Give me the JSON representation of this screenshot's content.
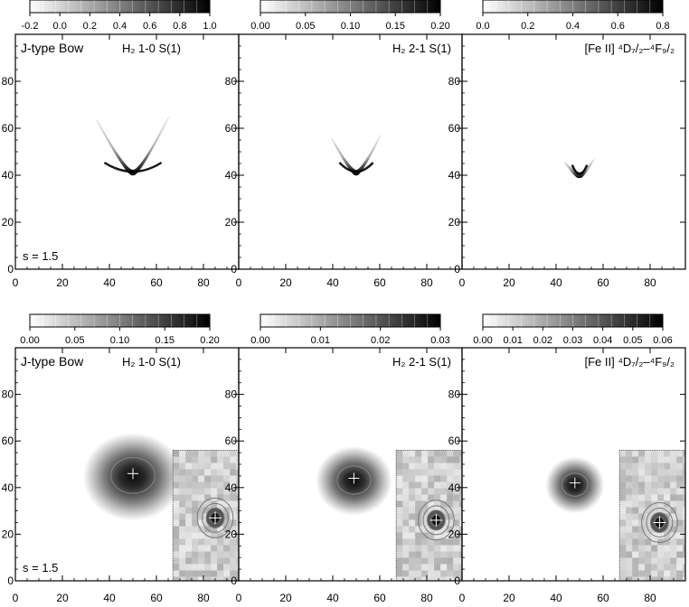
{
  "chart_data": [
    {
      "type": "heatmap",
      "row": 0,
      "col": 0,
      "model_label": "J-type Bow",
      "line_label": "H₂ 1-0 S(1)",
      "s_label": "s = 1.5",
      "colorbar": {
        "ticks": [
          "-0.2",
          "0.0",
          "0.2",
          "0.4",
          "0.6",
          "0.8",
          "1.0"
        ],
        "min": -0.2,
        "max": 1.0
      },
      "xlim": [
        0,
        95
      ],
      "ylim": [
        0,
        100
      ],
      "xticks": [
        "0",
        "20",
        "40",
        "60",
        "80"
      ],
      "yticks": [
        "0",
        "20",
        "40",
        "60",
        "80"
      ],
      "emission": {
        "shape": "bow",
        "apex": [
          50,
          40
        ],
        "half_width": 16,
        "height": 24,
        "peak": 1.0
      }
    },
    {
      "type": "heatmap",
      "row": 0,
      "col": 1,
      "model_label": "",
      "line_label": "H₂ 2-1 S(1)",
      "s_label": "",
      "colorbar": {
        "ticks": [
          "0.00",
          "0.05",
          "0.10",
          "0.15",
          "0.20"
        ],
        "min": 0.0,
        "max": 0.2
      },
      "xlim": [
        0,
        95
      ],
      "ylim": [
        0,
        100
      ],
      "xticks": [
        "0",
        "20",
        "40",
        "60",
        "80"
      ],
      "yticks": [
        "0",
        "20",
        "40",
        "60",
        "80"
      ],
      "emission": {
        "shape": "bow",
        "apex": [
          50,
          40
        ],
        "half_width": 11,
        "height": 16,
        "peak": 0.2
      }
    },
    {
      "type": "heatmap",
      "row": 0,
      "col": 2,
      "model_label": "",
      "line_label": "[Fe II] ⁴D₇/₂–⁴F₉/₂",
      "s_label": "",
      "colorbar": {
        "ticks": [
          "0.0",
          "0.2",
          "0.4",
          "0.6",
          "0.8"
        ],
        "min": 0.0,
        "max": 0.8
      },
      "xlim": [
        0,
        95
      ],
      "ylim": [
        0,
        100
      ],
      "xticks": [
        "0",
        "20",
        "40",
        "60",
        "80"
      ],
      "yticks": [
        "0",
        "20",
        "40",
        "60",
        "80"
      ],
      "emission": {
        "shape": "bow",
        "apex": [
          50,
          39
        ],
        "half_width": 7,
        "height": 7,
        "peak": 0.8
      }
    },
    {
      "type": "heatmap",
      "row": 1,
      "col": 0,
      "model_label": "J-type Bow",
      "line_label": "H₂ 1-0 S(1)",
      "s_label": "s = 1.5",
      "colorbar": {
        "ticks": [
          "0.00",
          "0.05",
          "0.10",
          "0.15",
          "0.20"
        ],
        "min": 0.0,
        "max": 0.2
      },
      "xlim": [
        0,
        95
      ],
      "ylim": [
        0,
        100
      ],
      "xticks": [
        "0",
        "20",
        "40",
        "60",
        "80"
      ],
      "yticks": [
        "0",
        "20",
        "40",
        "60",
        "80"
      ],
      "emission": {
        "shape": "blob",
        "center": [
          50,
          46
        ],
        "rx": 17,
        "ry": 14,
        "peak": 0.2
      },
      "peak_marker": [
        50,
        46
      ],
      "inset": {
        "xrange": [
          67,
          95
        ],
        "yrange": [
          0,
          56
        ],
        "peak": [
          85,
          27
        ]
      }
    },
    {
      "type": "heatmap",
      "row": 1,
      "col": 1,
      "model_label": "",
      "line_label": "H₂ 2-1 S(1)",
      "s_label": "",
      "colorbar": {
        "ticks": [
          "0.00",
          "0.01",
          "0.02",
          "0.03"
        ],
        "min": 0.0,
        "max": 0.03
      },
      "xlim": [
        0,
        95
      ],
      "ylim": [
        0,
        100
      ],
      "xticks": [
        "0",
        "20",
        "40",
        "60",
        "80"
      ],
      "yticks": [
        "0",
        "20",
        "40",
        "60",
        "80"
      ],
      "emission": {
        "shape": "blob",
        "center": [
          49,
          44
        ],
        "rx": 13,
        "ry": 11,
        "peak": 0.03
      },
      "peak_marker": [
        49,
        44
      ],
      "inset": {
        "xrange": [
          67,
          95
        ],
        "yrange": [
          0,
          56
        ],
        "peak": [
          84,
          26
        ]
      }
    },
    {
      "type": "heatmap",
      "row": 1,
      "col": 2,
      "model_label": "",
      "line_label": "[Fe II] ⁴D₇/₂–⁴F₉/₂",
      "s_label": "",
      "colorbar": {
        "ticks": [
          "0.00",
          "0.01",
          "0.02",
          "0.03",
          "0.04",
          "0.05",
          "0.06"
        ],
        "min": 0.0,
        "max": 0.06
      },
      "xlim": [
        0,
        95
      ],
      "ylim": [
        0,
        100
      ],
      "xticks": [
        "0",
        "20",
        "40",
        "60",
        "80"
      ],
      "yticks": [
        "0",
        "20",
        "40",
        "60",
        "80"
      ],
      "emission": {
        "shape": "blob",
        "center": [
          48,
          42
        ],
        "rx": 10,
        "ry": 9,
        "peak": 0.06
      },
      "peak_marker": [
        48,
        42
      ],
      "inset": {
        "xrange": [
          67,
          95
        ],
        "yrange": [
          0,
          56
        ],
        "peak": [
          84,
          25
        ]
      }
    }
  ]
}
